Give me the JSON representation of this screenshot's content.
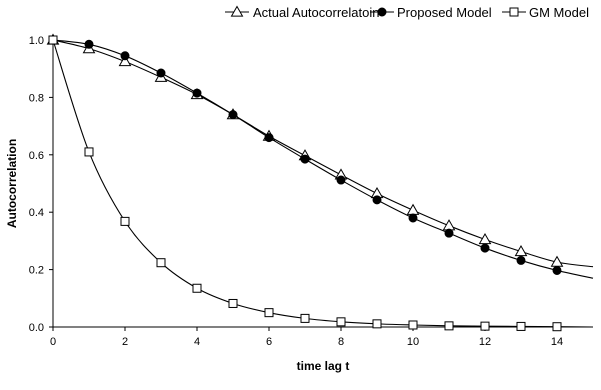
{
  "chart_data": {
    "type": "line",
    "title": "",
    "xlabel": "time lag t",
    "ylabel": "Autocorrelation",
    "xlim": [
      0,
      15
    ],
    "ylim": [
      0,
      1
    ],
    "x_ticks": [
      0,
      2,
      4,
      6,
      8,
      10,
      12,
      14
    ],
    "x_tick_labels": [
      "0",
      "2",
      "4",
      "6",
      "8",
      "10",
      "12",
      "14"
    ],
    "y_ticks": [
      0,
      0.2,
      0.4,
      0.6,
      0.8,
      1.0
    ],
    "y_tick_labels": [
      "0.0",
      "0.2",
      "0.4",
      "0.6",
      "0.8",
      "1.0"
    ],
    "grid": false,
    "legend_position": "top-right",
    "x": [
      0,
      1,
      2,
      3,
      4,
      5,
      6,
      7,
      8,
      9,
      10,
      11,
      12,
      13,
      14
    ],
    "series": [
      {
        "name": "Actual Autocorrelatoin",
        "marker": "triangle-open",
        "values": [
          1.0,
          0.97,
          0.925,
          0.87,
          0.81,
          0.74,
          0.665,
          0.597,
          0.53,
          0.465,
          0.407,
          0.353,
          0.305,
          0.263,
          0.226
        ],
        "line_end": {
          "x": 15,
          "y": 0.21
        }
      },
      {
        "name": "Proposed Model",
        "marker": "circle-filled",
        "values": [
          1.0,
          0.985,
          0.945,
          0.885,
          0.815,
          0.74,
          0.66,
          0.585,
          0.512,
          0.443,
          0.38,
          0.327,
          0.275,
          0.232,
          0.197
        ],
        "line_end": {
          "x": 15,
          "y": 0.17
        }
      },
      {
        "name": "GM Model",
        "marker": "square-open",
        "values": [
          1.0,
          0.61,
          0.368,
          0.224,
          0.135,
          0.082,
          0.05,
          0.03,
          0.018,
          0.011,
          0.007,
          0.004,
          0.003,
          0.002,
          0.001
        ],
        "line_end": {
          "x": 15,
          "y": 0.0
        }
      }
    ],
    "colors": {
      "line": "#000000",
      "marker_fill_open": "#ffffff",
      "marker_fill_solid": "#000000"
    }
  }
}
